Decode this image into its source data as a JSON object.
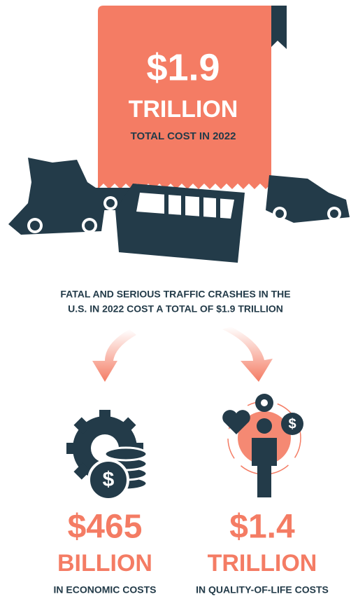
{
  "banner": {
    "amount": "$1.9",
    "unit": "TRILLION",
    "caption": "TOTAL COST IN 2022"
  },
  "description": [
    "FATAL AND SERIOUS TRAFFIC CRASHES IN THE",
    "U.S. IN 2022 COST A TOTAL OF $1.9 TRILLION"
  ],
  "stats": [
    {
      "amount": "$465",
      "unit": "BILLION",
      "caption": "IN ECONOMIC COSTS"
    },
    {
      "amount": "$1.4",
      "unit": "TRILLION",
      "caption": "IN QUALITY-OF-LIFE COSTS"
    }
  ]
}
